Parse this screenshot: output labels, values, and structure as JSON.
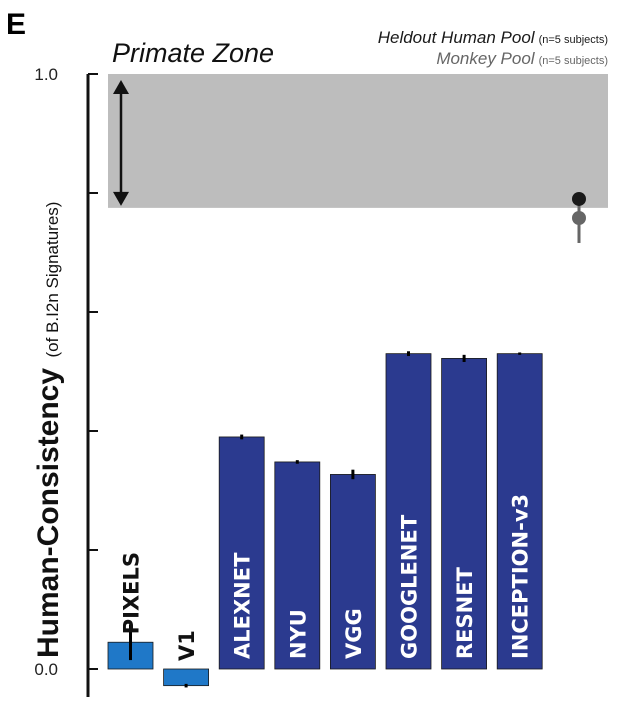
{
  "panel_label": "E",
  "chart_data": {
    "type": "bar",
    "ylabel": "Human-Consistency",
    "ylabel_sub": "(of B.I2n Signatures)",
    "ylim": [
      0.0,
      1.0
    ],
    "yticks": [
      0.0,
      0.2,
      0.4,
      0.6,
      0.8,
      1.0
    ],
    "ytick_labels": [
      "0.0",
      "",
      "",
      "",
      "",
      "1.0"
    ],
    "categories": [
      "PIXELS",
      "V1",
      "ALEXNET",
      "NYU",
      "VGG",
      "GOOGLENET",
      "RESNET",
      "INCEPTION-v3"
    ],
    "values": [
      0.045,
      -0.028,
      0.39,
      0.348,
      0.327,
      0.53,
      0.522,
      0.53
    ],
    "errors": [
      0.03,
      0.003,
      0.004,
      0.003,
      0.008,
      0.004,
      0.006,
      0.002
    ],
    "bar_colors": [
      "#1f78c8",
      "#1f78c8",
      "#2b3a8f",
      "#2b3a8f",
      "#2b3a8f",
      "#2b3a8f",
      "#2b3a8f",
      "#2b3a8f"
    ],
    "zone": {
      "title": "Primate Zone",
      "ymin": 0.775,
      "ymax": 1.0,
      "color": "#bdbdbd"
    },
    "pools": [
      {
        "name": "Heldout Human Pool",
        "note": "(n=5 subjects)",
        "value": 0.79,
        "color": "#1a1a1a"
      },
      {
        "name": "Monkey Pool",
        "note": "(n=5 subjects)",
        "value": 0.758,
        "error": 0.042,
        "color": "#666666"
      }
    ]
  }
}
